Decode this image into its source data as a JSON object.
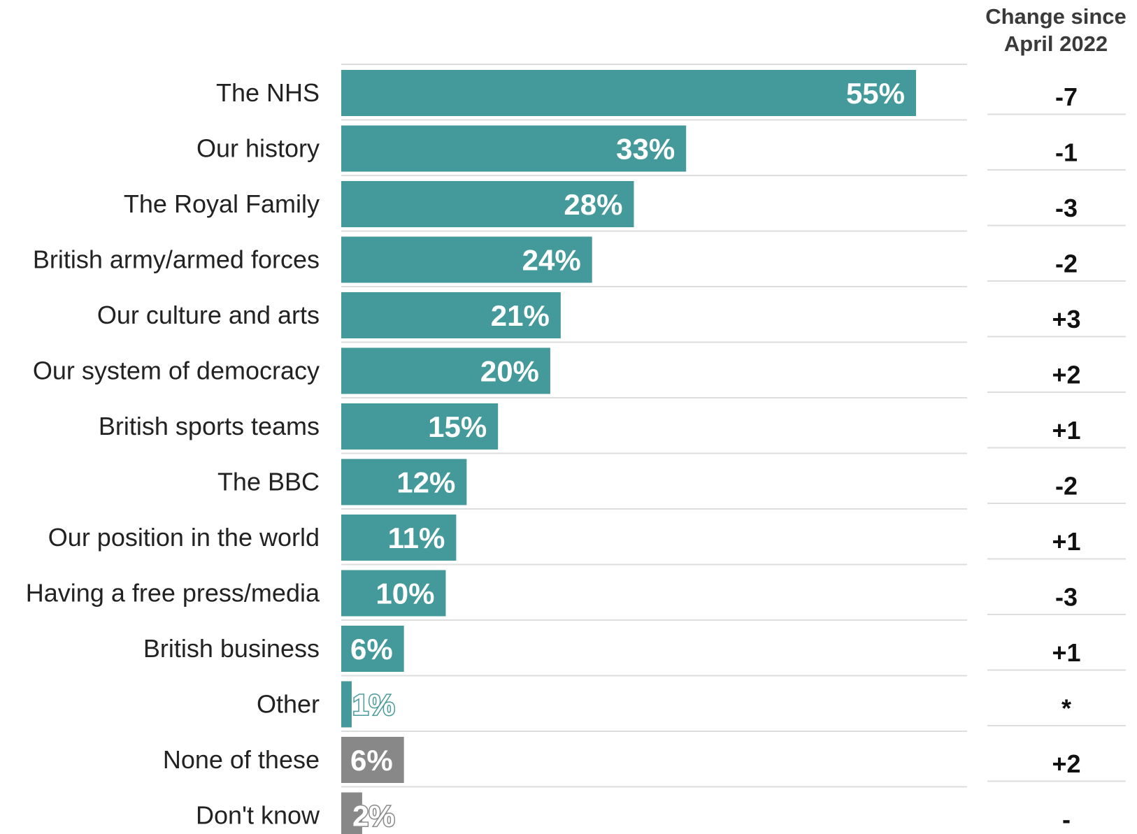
{
  "chart_data": {
    "type": "bar",
    "orientation": "horizontal",
    "categories": [
      "The NHS",
      "Our history",
      "The Royal Family",
      "British army/armed forces",
      "Our culture and arts",
      "Our system of democracy",
      "British sports teams",
      "The BBC",
      "Our position in the world",
      "Having a free press/media",
      "British business",
      "Other",
      "None of these",
      "Don't know"
    ],
    "values": [
      55,
      33,
      28,
      24,
      21,
      20,
      15,
      12,
      11,
      10,
      6,
      1,
      6,
      2
    ],
    "value_labels": [
      "55%",
      "33%",
      "28%",
      "24%",
      "21%",
      "20%",
      "15%",
      "12%",
      "11%",
      "10%",
      "6%",
      "1%",
      "6%",
      "2%"
    ],
    "change_header": [
      "Change since",
      "April 2022"
    ],
    "changes": [
      "-7",
      "-1",
      "-3",
      "-2",
      "+3",
      "+2",
      "+1",
      "-2",
      "+1",
      "-3",
      "+1",
      "*",
      "+2",
      "-"
    ],
    "bar_colors": [
      "#449a9a",
      "#449a9a",
      "#449a9a",
      "#449a9a",
      "#449a9a",
      "#449a9a",
      "#449a9a",
      "#449a9a",
      "#449a9a",
      "#449a9a",
      "#449a9a",
      "#449a9a",
      "#888888",
      "#888888"
    ],
    "xlim": [
      0,
      60
    ],
    "grid": false,
    "legend": "none"
  }
}
